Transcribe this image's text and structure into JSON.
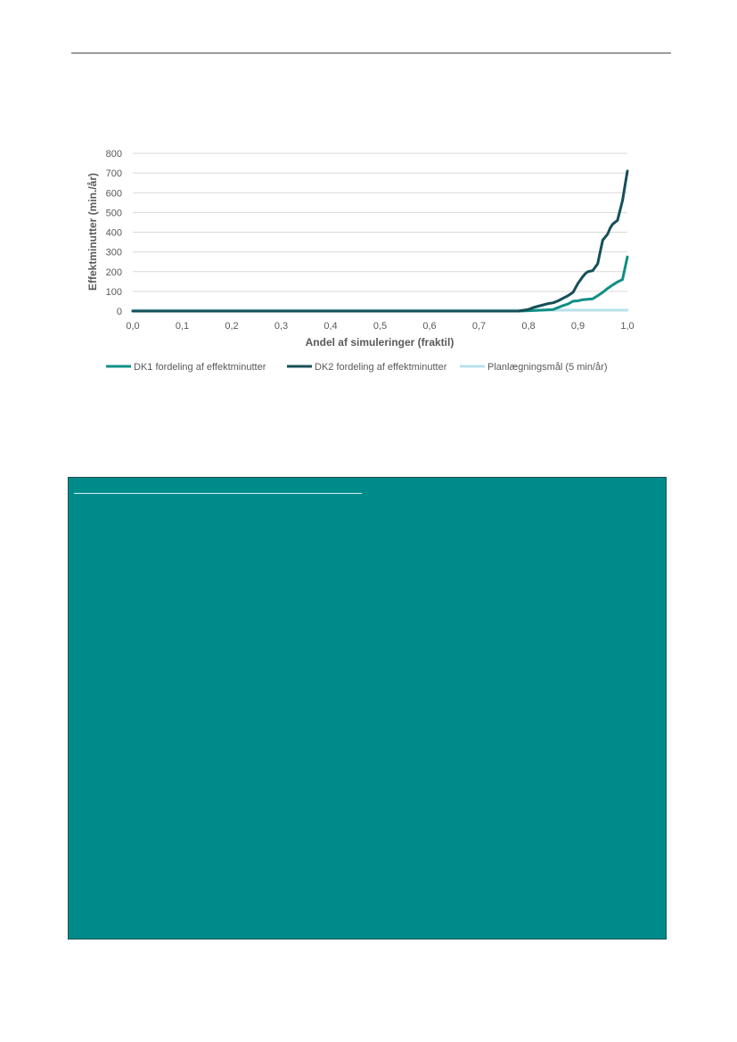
{
  "chart_data": {
    "type": "line",
    "title": "",
    "xlabel": "Andel af simuleringer (fraktil)",
    "ylabel": "Effektminutter (min./år)",
    "xlim": [
      0,
      1
    ],
    "ylim": [
      0,
      800
    ],
    "x_ticks": [
      "0,0",
      "0,1",
      "0,2",
      "0,3",
      "0,4",
      "0,5",
      "0,6",
      "0,7",
      "0,8",
      "0,9",
      "1,0"
    ],
    "y_ticks": [
      "0",
      "100",
      "200",
      "300",
      "400",
      "500",
      "600",
      "700",
      "800"
    ],
    "grid": true,
    "legend_position": "bottom",
    "series": [
      {
        "name": "DK1 fordeling af effektminutter",
        "color": "#0f8f86",
        "x": [
          0,
          0.78,
          0.8,
          0.83,
          0.85,
          0.86,
          0.87,
          0.88,
          0.89,
          0.9,
          0.91,
          0.92,
          0.93,
          0.94,
          0.95,
          0.96,
          0.97,
          0.98,
          0.99,
          1.0
        ],
        "y": [
          0,
          0,
          2,
          5,
          8,
          18,
          28,
          36,
          50,
          52,
          58,
          60,
          62,
          78,
          95,
          115,
          132,
          148,
          160,
          275
        ]
      },
      {
        "name": "DK2 fordeling af effektminutter",
        "color": "#154f58",
        "x": [
          0,
          0.78,
          0.8,
          0.81,
          0.82,
          0.84,
          0.85,
          0.86,
          0.87,
          0.88,
          0.89,
          0.9,
          0.91,
          0.915,
          0.92,
          0.93,
          0.94,
          0.945,
          0.95,
          0.96,
          0.965,
          0.97,
          0.98,
          0.99,
          1.0
        ],
        "y": [
          0,
          0,
          8,
          18,
          25,
          38,
          42,
          52,
          65,
          78,
          95,
          140,
          175,
          190,
          200,
          205,
          240,
          300,
          360,
          390,
          420,
          440,
          460,
          560,
          710
        ]
      },
      {
        "name": "Planlægningsmål  (5 min/år)",
        "color": "#b8e2ea",
        "x": [
          0,
          1.0
        ],
        "y": [
          5,
          5
        ]
      }
    ]
  }
}
